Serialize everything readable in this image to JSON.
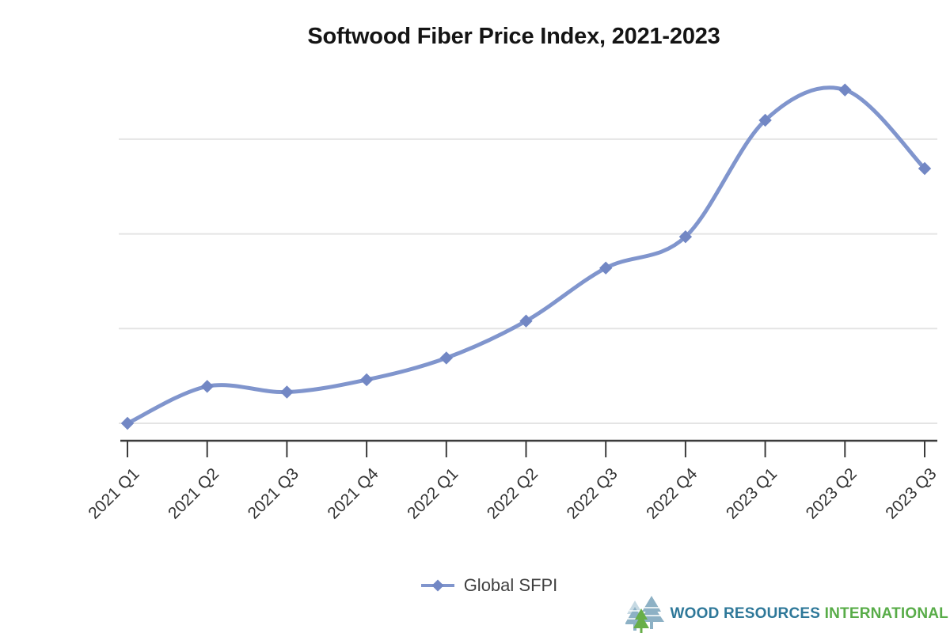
{
  "chart_data": {
    "type": "line",
    "title": "Softwood Fiber Price Index, 2021-2023",
    "categories": [
      "2021 Q1",
      "2021 Q2",
      "2021 Q3",
      "2021 Q4",
      "2022 Q1",
      "2022 Q2",
      "2022 Q3",
      "2022 Q4",
      "2023 Q1",
      "2023 Q2",
      "2023 Q3"
    ],
    "series": [
      {
        "name": "Global SFPI",
        "values": [
          100,
          103.9,
          103.3,
          104.6,
          106.9,
          110.8,
          116.4,
          119.7,
          132.0,
          135.2,
          126.9
        ]
      }
    ],
    "xlabel": "",
    "ylabel": "",
    "y_axis_tick_labels": [],
    "y_gridlines_estimated": [
      100,
      110,
      120,
      130
    ],
    "ylim": [
      98.2,
      140
    ],
    "x_tick_label_rotation_deg": -45,
    "legend_position": "bottom-center",
    "smooth": true,
    "marker": "diamond",
    "colors": {
      "line": "#8095cd",
      "marker": "#7287c4",
      "gridline": "#e4e4e4",
      "axis": "#3b3b3b",
      "tick_label": "#333333",
      "title": "#141414",
      "legend_text": "#404040"
    }
  },
  "logo": {
    "text_part1": "WOOD RESOURCES",
    "text_part2": "INTERNATIONAL",
    "icon": "pine-trees-icon",
    "colors": {
      "part1": "#2e7899",
      "part2": "#58ac48",
      "tree_blue": "#8db1c5",
      "tree_blue_light": "#c6d9e3",
      "tree_green": "#68ae49"
    }
  }
}
